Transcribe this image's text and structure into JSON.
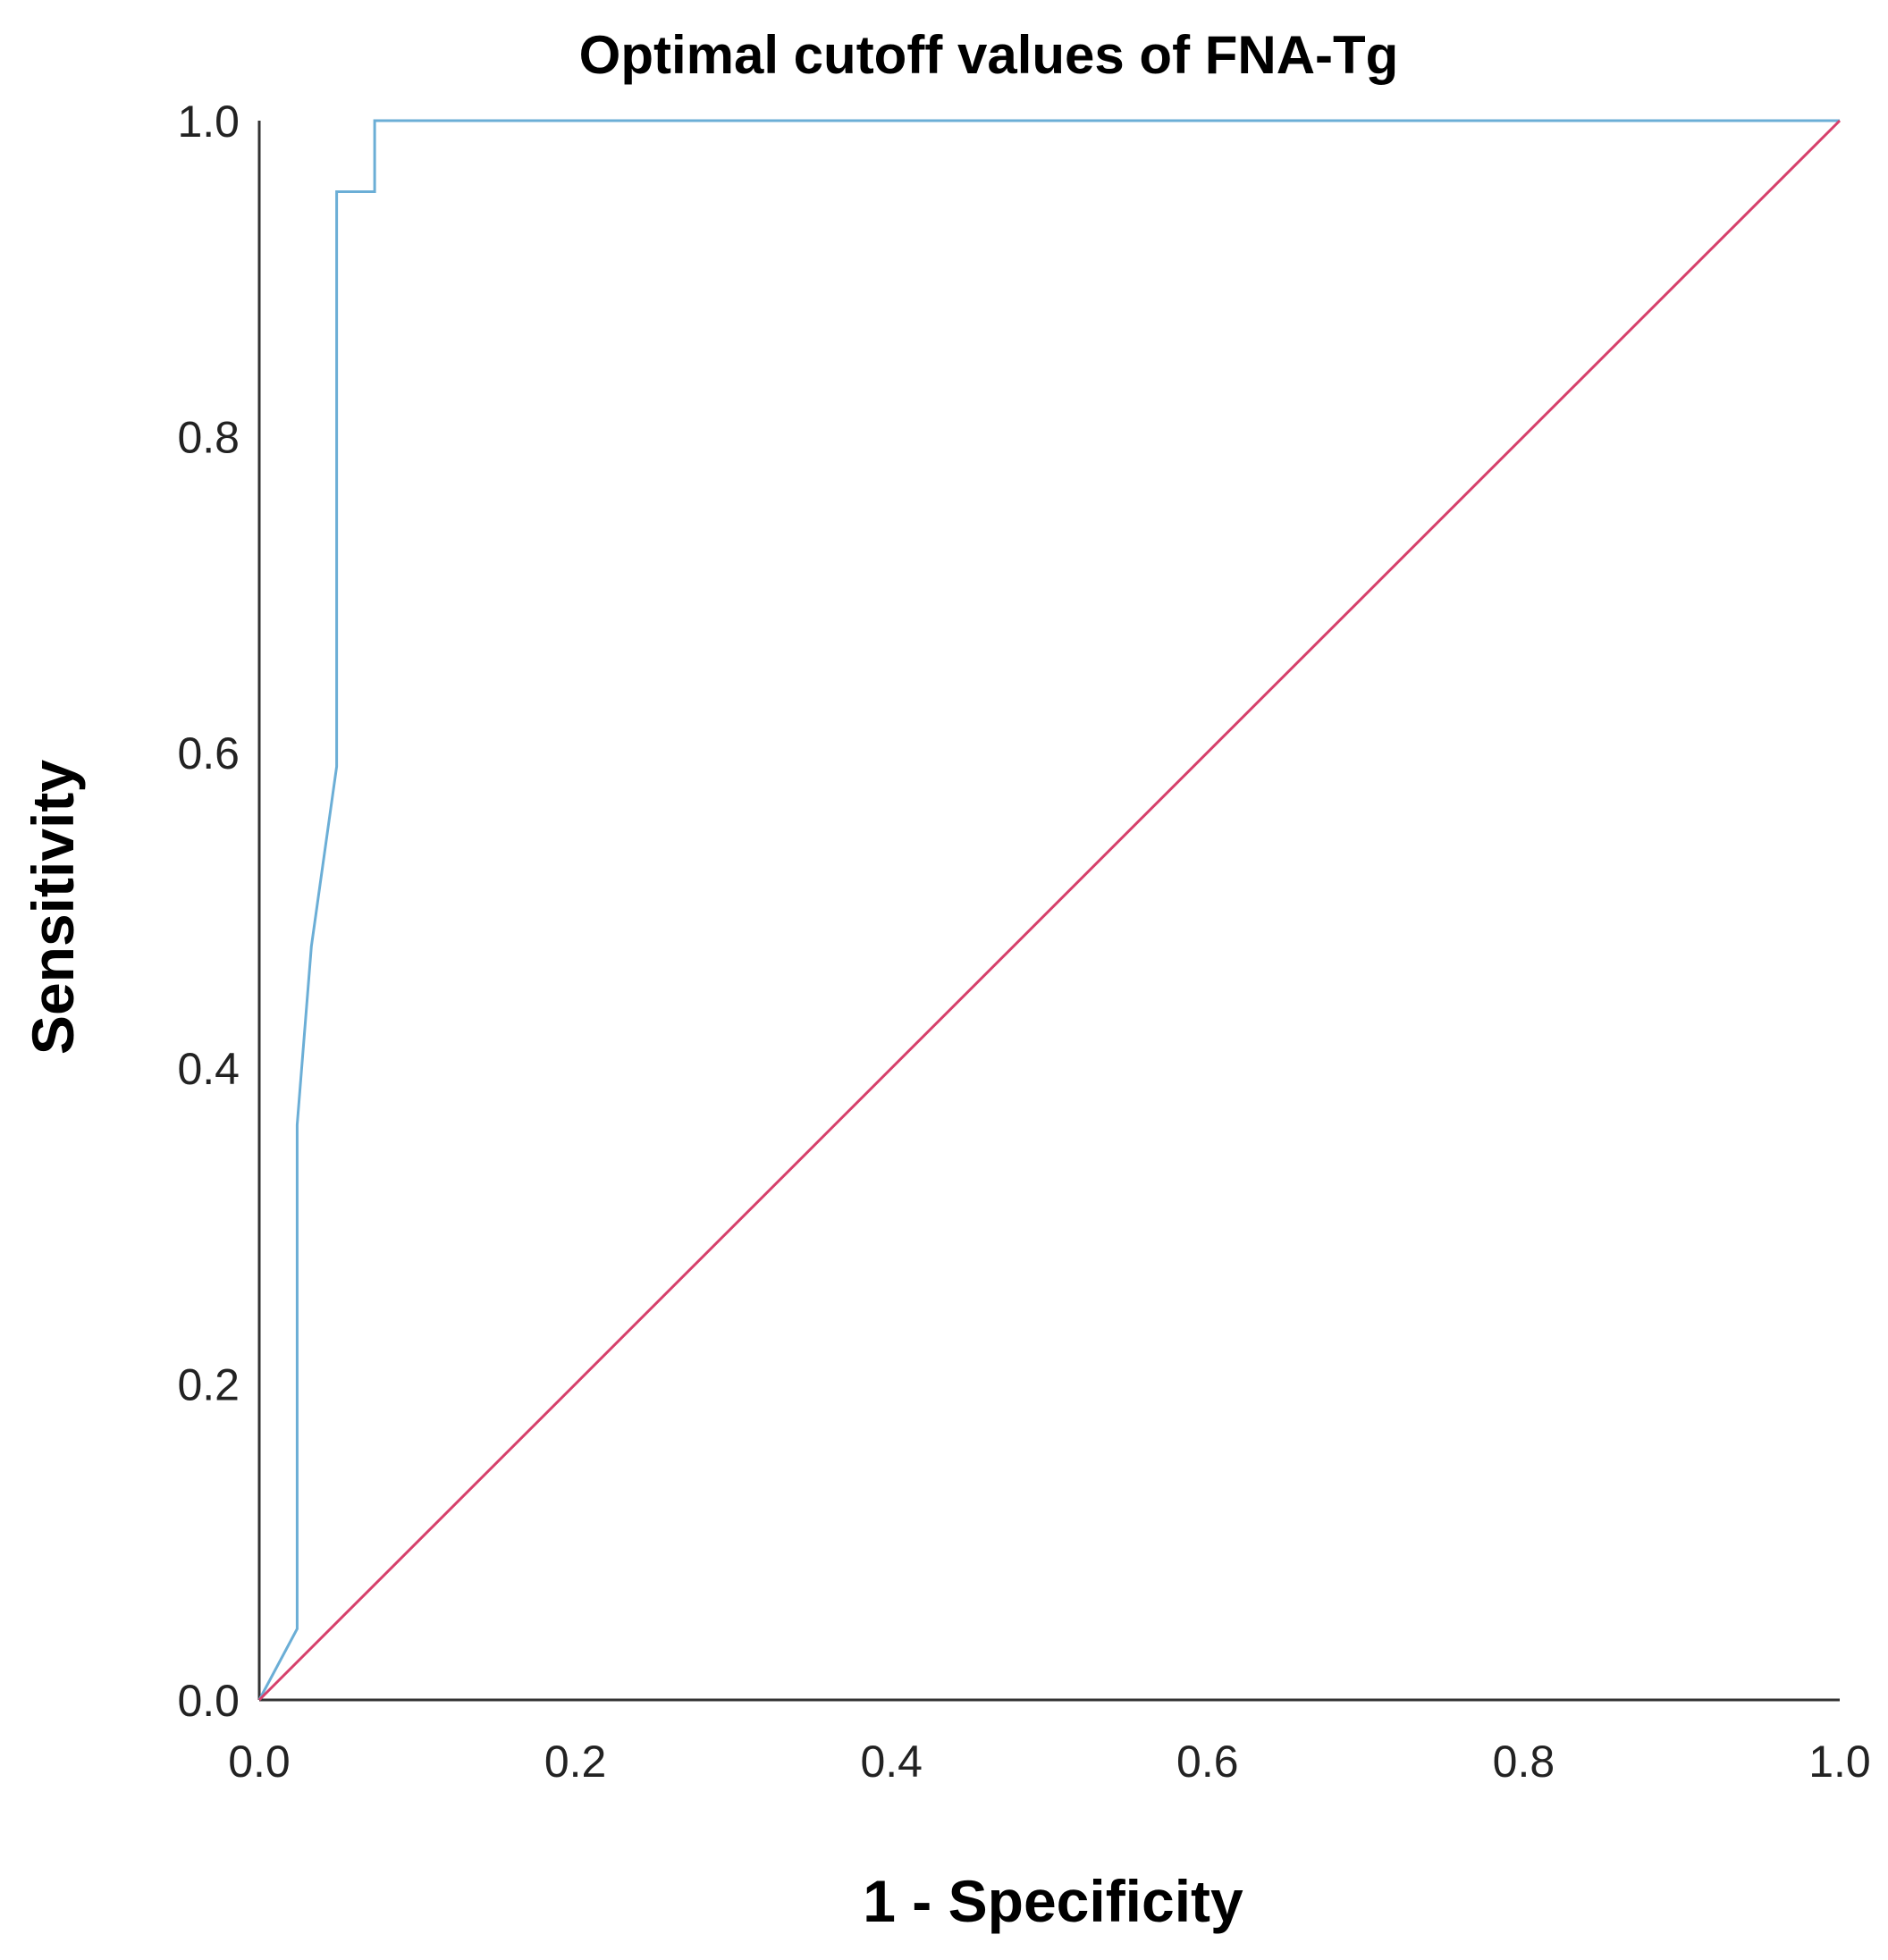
{
  "chart_data": {
    "type": "line",
    "title": "Optimal cutoff values of FNA-Tg",
    "xlabel": "1 - Specificity",
    "ylabel": "Sensitivity",
    "xlim": [
      0,
      1
    ],
    "ylim": [
      0,
      1
    ],
    "x_ticks": [
      "0.0",
      "0.2",
      "0.4",
      "0.6",
      "0.8",
      "1.0"
    ],
    "y_ticks": [
      "0.0",
      "0.2",
      "0.4",
      "0.6",
      "0.8",
      "1.0"
    ],
    "grid": false,
    "series": [
      {
        "color": "#6baed6",
        "x": [
          0.0,
          0.024,
          0.024,
          0.033,
          0.049,
          0.049,
          0.073,
          0.073,
          1.0
        ],
        "y": [
          0.0,
          0.045,
          0.364,
          0.477,
          0.591,
          0.955,
          0.955,
          1.0,
          1.0
        ]
      },
      {
        "color": "#d6406b",
        "x": [
          0.0,
          1.0
        ],
        "y": [
          0.0,
          1.0
        ]
      }
    ]
  }
}
